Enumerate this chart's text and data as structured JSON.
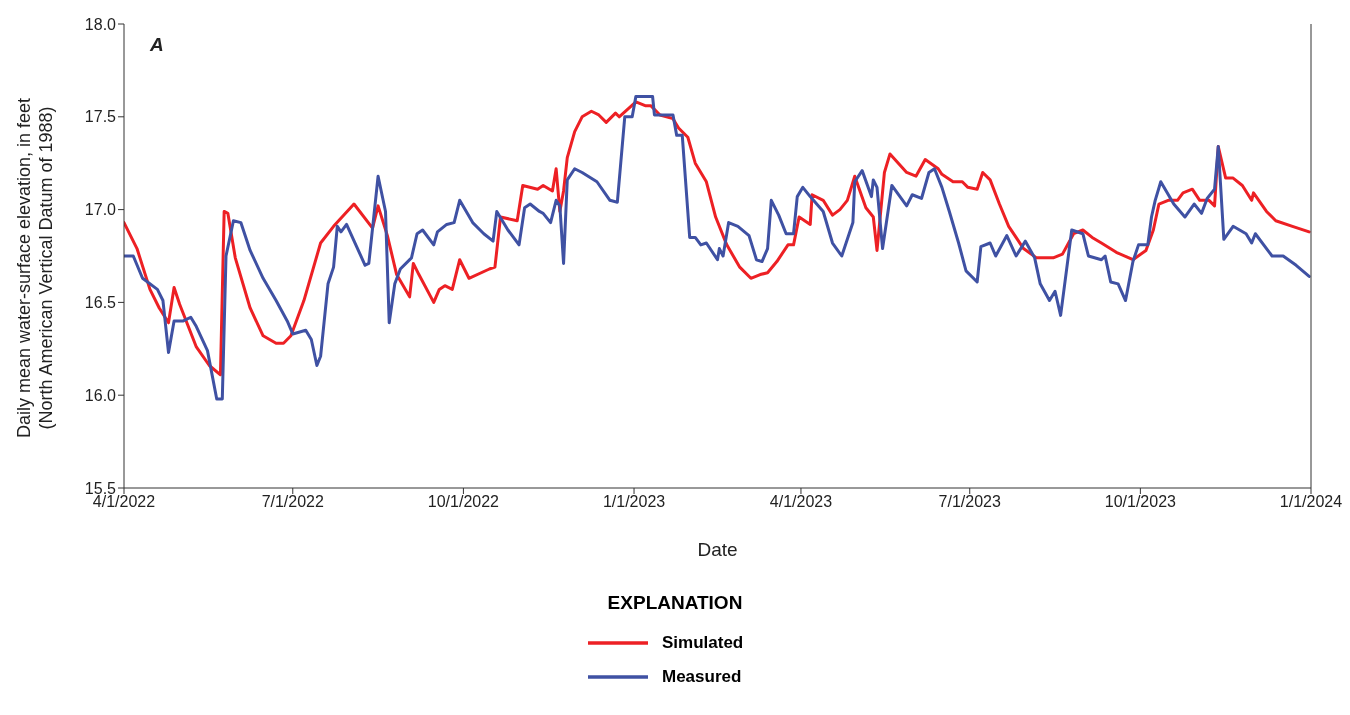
{
  "chart_data": {
    "type": "line",
    "xlabel": "Date",
    "ylabel": "Daily mean water-surface elevation, in feet\n(North American Vertical Datum of 1988)",
    "legend_title": "EXPLANATION",
    "legend": "bottom",
    "annotations": [
      "A"
    ],
    "marker": "none",
    "line_style": "solid",
    "xlim": [
      "2022-04-01",
      "2024-01-01"
    ],
    "xticks": [
      {
        "value": "2022-04-01",
        "label": "4/1/2022"
      },
      {
        "value": "2022-07-01",
        "label": "7/1/2022"
      },
      {
        "value": "2022-10-01",
        "label": "10/1/2022"
      },
      {
        "value": "2023-01-01",
        "label": "1/1/2023"
      },
      {
        "value": "2023-04-01",
        "label": "4/1/2023"
      },
      {
        "value": "2023-07-01",
        "label": "7/1/2023"
      },
      {
        "value": "2023-10-01",
        "label": "10/1/2023"
      },
      {
        "value": "2024-01-01",
        "label": "1/1/2024"
      }
    ],
    "ylim": [
      15.5,
      18.0
    ],
    "yticks": [
      {
        "value": 15.5,
        "label": "15.5"
      },
      {
        "value": 16,
        "label": "16.0"
      },
      {
        "value": 16.5,
        "label": "16.5"
      },
      {
        "value": 17,
        "label": "17.0"
      },
      {
        "value": 17.5,
        "label": "17.5"
      },
      {
        "value": 18,
        "label": "18.0"
      }
    ],
    "series": [
      {
        "name": "Simulated",
        "color": "#ed2024",
        "x": [
          "2022-04-01",
          "2022-04-08",
          "2022-04-15",
          "2022-04-20",
          "2022-04-25",
          "2022-04-28",
          "2022-05-01",
          "2022-05-10",
          "2022-05-17",
          "2022-05-23",
          "2022-05-25",
          "2022-05-27",
          "2022-05-31",
          "2022-06-08",
          "2022-06-15",
          "2022-06-22",
          "2022-06-26",
          "2022-06-30",
          "2022-07-07",
          "2022-07-16",
          "2022-07-23",
          "2022-08-03",
          "2022-08-13",
          "2022-08-16",
          "2022-08-21",
          "2022-08-26",
          "2022-09-02",
          "2022-09-04",
          "2022-09-07",
          "2022-09-15",
          "2022-09-18",
          "2022-09-21",
          "2022-09-25",
          "2022-09-29",
          "2022-10-04",
          "2022-10-15",
          "2022-10-18",
          "2022-10-21",
          "2022-10-30",
          "2022-11-02",
          "2022-11-10",
          "2022-11-13",
          "2022-11-18",
          "2022-11-20",
          "2022-11-22",
          "2022-11-24",
          "2022-11-26",
          "2022-11-30",
          "2022-12-04",
          "2022-12-09",
          "2022-12-13",
          "2022-12-17",
          "2022-12-22",
          "2022-12-24",
          "2023-01-02",
          "2023-01-07",
          "2023-01-10",
          "2023-01-15",
          "2023-01-22",
          "2023-01-25",
          "2023-01-30",
          "2023-02-03",
          "2023-02-09",
          "2023-02-14",
          "2023-02-20",
          "2023-02-27",
          "2023-03-05",
          "2023-03-10",
          "2023-03-14",
          "2023-03-19",
          "2023-03-25",
          "2023-03-28",
          "2023-03-31",
          "2023-04-06",
          "2023-04-07",
          "2023-04-13",
          "2023-04-18",
          "2023-04-22",
          "2023-04-26",
          "2023-04-30",
          "2023-05-06",
          "2023-05-10",
          "2023-05-12",
          "2023-05-16",
          "2023-05-19",
          "2023-05-28",
          "2023-06-02",
          "2023-06-07",
          "2023-06-14",
          "2023-06-16",
          "2023-06-22",
          "2023-06-27",
          "2023-06-30",
          "2023-07-05",
          "2023-07-08",
          "2023-07-12",
          "2023-07-17",
          "2023-07-22",
          "2023-07-30",
          "2023-08-06",
          "2023-08-15",
          "2023-08-20",
          "2023-08-26",
          "2023-08-31",
          "2023-09-05",
          "2023-09-10",
          "2023-09-18",
          "2023-09-27",
          "2023-10-04",
          "2023-10-08",
          "2023-10-11",
          "2023-10-16",
          "2023-10-21",
          "2023-10-24",
          "2023-10-29",
          "2023-11-02",
          "2023-11-07",
          "2023-11-10",
          "2023-11-12",
          "2023-11-16",
          "2023-11-20",
          "2023-11-25",
          "2023-11-30",
          "2023-12-01",
          "2023-12-08",
          "2023-12-13",
          "2023-12-22",
          "2023-12-31"
        ],
        "values": [
          16.93,
          16.79,
          16.57,
          16.47,
          16.39,
          16.58,
          16.49,
          16.26,
          16.16,
          16.11,
          16.99,
          16.98,
          16.74,
          16.47,
          16.32,
          16.28,
          16.28,
          16.32,
          16.51,
          16.82,
          16.91,
          17.03,
          16.9,
          17.02,
          16.86,
          16.65,
          16.53,
          16.71,
          16.65,
          16.5,
          16.57,
          16.59,
          16.57,
          16.73,
          16.63,
          16.68,
          16.69,
          16.96,
          16.94,
          17.13,
          17.11,
          17.13,
          17.1,
          17.22,
          16.99,
          17.1,
          17.28,
          17.42,
          17.5,
          17.53,
          17.51,
          17.47,
          17.52,
          17.5,
          17.58,
          17.56,
          17.56,
          17.51,
          17.49,
          17.44,
          17.39,
          17.25,
          17.15,
          16.96,
          16.81,
          16.69,
          16.63,
          16.65,
          16.66,
          16.72,
          16.81,
          16.81,
          16.96,
          16.92,
          17.08,
          17.05,
          16.97,
          17.0,
          17.05,
          17.18,
          17.01,
          16.96,
          16.78,
          17.2,
          17.3,
          17.2,
          17.18,
          17.27,
          17.22,
          17.19,
          17.15,
          17.15,
          17.12,
          17.11,
          17.2,
          17.16,
          17.03,
          16.91,
          16.79,
          16.74,
          16.74,
          16.76,
          16.87,
          16.89,
          16.85,
          16.82,
          16.77,
          16.73,
          16.78,
          16.89,
          17.03,
          17.05,
          17.05,
          17.09,
          17.11,
          17.05,
          17.05,
          17.02,
          17.34,
          17.17,
          17.17,
          17.13,
          17.05,
          17.09,
          16.99,
          16.94,
          16.91,
          16.88
        ]
      },
      {
        "name": "Measured",
        "color": "#3f51a3",
        "x": [
          "2022-04-01",
          "2022-04-06",
          "2022-04-11",
          "2022-04-19",
          "2022-04-22",
          "2022-04-25",
          "2022-04-28",
          "2022-05-03",
          "2022-05-07",
          "2022-05-10",
          "2022-05-16",
          "2022-05-21",
          "2022-05-24",
          "2022-05-26",
          "2022-05-30",
          "2022-06-03",
          "2022-06-08",
          "2022-06-15",
          "2022-06-22",
          "2022-06-28",
          "2022-07-01",
          "2022-07-08",
          "2022-07-11",
          "2022-07-14",
          "2022-07-16",
          "2022-07-20",
          "2022-07-23",
          "2022-07-25",
          "2022-07-27",
          "2022-07-30",
          "2022-08-04",
          "2022-08-09",
          "2022-08-11",
          "2022-08-16",
          "2022-08-20",
          "2022-08-22",
          "2022-08-25",
          "2022-08-28",
          "2022-09-03",
          "2022-09-06",
          "2022-09-09",
          "2022-09-15",
          "2022-09-17",
          "2022-09-22",
          "2022-09-26",
          "2022-09-29",
          "2022-10-06",
          "2022-10-12",
          "2022-10-17",
          "2022-10-19",
          "2022-10-25",
          "2022-10-31",
          "2022-11-03",
          "2022-11-06",
          "2022-11-11",
          "2022-11-13",
          "2022-11-17",
          "2022-11-20",
          "2022-11-22",
          "2022-11-24",
          "2022-11-26",
          "2022-11-30",
          "2022-12-04",
          "2022-12-12",
          "2022-12-19",
          "2022-12-23",
          "2022-12-27",
          "2022-12-31",
          "2023-01-02",
          "2023-01-11",
          "2023-01-12",
          "2023-01-22",
          "2023-01-24",
          "2023-01-27",
          "2023-01-31",
          "2023-02-03",
          "2023-02-06",
          "2023-02-09",
          "2023-02-15",
          "2023-02-16",
          "2023-02-18",
          "2023-02-21",
          "2023-02-26",
          "2023-03-04",
          "2023-03-08",
          "2023-03-11",
          "2023-03-14",
          "2023-03-16",
          "2023-03-20",
          "2023-03-24",
          "2023-03-28",
          "2023-03-30",
          "2023-04-02",
          "2023-04-06",
          "2023-04-13",
          "2023-04-18",
          "2023-04-23",
          "2023-04-29",
          "2023-04-30",
          "2023-05-04",
          "2023-05-09",
          "2023-05-10",
          "2023-05-12",
          "2023-05-15",
          "2023-05-20",
          "2023-05-28",
          "2023-05-31",
          "2023-06-05",
          "2023-06-09",
          "2023-06-12",
          "2023-06-16",
          "2023-06-20",
          "2023-06-25",
          "2023-06-29",
          "2023-07-05",
          "2023-07-07",
          "2023-07-12",
          "2023-07-15",
          "2023-07-21",
          "2023-07-26",
          "2023-07-31",
          "2023-08-05",
          "2023-08-08",
          "2023-08-13",
          "2023-08-16",
          "2023-08-19",
          "2023-08-25",
          "2023-08-31",
          "2023-09-03",
          "2023-09-10",
          "2023-09-12",
          "2023-09-15",
          "2023-09-19",
          "2023-09-23",
          "2023-09-27",
          "2023-09-30",
          "2023-10-05",
          "2023-10-07",
          "2023-10-09",
          "2023-10-12",
          "2023-10-19",
          "2023-10-25",
          "2023-10-30",
          "2023-11-03",
          "2023-11-06",
          "2023-11-10",
          "2023-11-12",
          "2023-11-15",
          "2023-11-20",
          "2023-11-27",
          "2023-11-30",
          "2023-12-02",
          "2023-12-11",
          "2023-12-17",
          "2023-12-24",
          "2023-12-31"
        ],
        "values": [
          16.75,
          16.75,
          16.63,
          16.57,
          16.51,
          16.23,
          16.4,
          16.4,
          16.42,
          16.37,
          16.24,
          15.98,
          15.98,
          16.75,
          16.94,
          16.93,
          16.78,
          16.63,
          16.51,
          16.4,
          16.33,
          16.35,
          16.3,
          16.16,
          16.21,
          16.6,
          16.69,
          16.91,
          16.88,
          16.92,
          16.81,
          16.7,
          16.71,
          17.18,
          16.99,
          16.39,
          16.6,
          16.68,
          16.74,
          16.87,
          16.89,
          16.81,
          16.88,
          16.92,
          16.93,
          17.05,
          16.93,
          16.87,
          16.83,
          16.99,
          16.89,
          16.81,
          17.01,
          17.03,
          16.99,
          16.98,
          16.93,
          17.05,
          17.02,
          16.71,
          17.16,
          17.22,
          17.2,
          17.15,
          17.05,
          17.04,
          17.5,
          17.5,
          17.61,
          17.61,
          17.51,
          17.51,
          17.4,
          17.4,
          16.85,
          16.85,
          16.81,
          16.82,
          16.73,
          16.79,
          16.75,
          16.93,
          16.91,
          16.86,
          16.73,
          16.72,
          16.79,
          17.05,
          16.97,
          16.87,
          16.87,
          17.07,
          17.12,
          17.07,
          16.99,
          16.82,
          16.75,
          16.93,
          17.15,
          17.21,
          17.07,
          17.16,
          17.12,
          16.79,
          17.13,
          17.02,
          17.08,
          17.06,
          17.2,
          17.22,
          17.12,
          16.99,
          16.82,
          16.67,
          16.61,
          16.8,
          16.82,
          16.75,
          16.86,
          16.75,
          16.83,
          16.74,
          16.6,
          16.51,
          16.56,
          16.43,
          16.89,
          16.87,
          16.75,
          16.73,
          16.75,
          16.61,
          16.6,
          16.51,
          16.72,
          16.81,
          16.81,
          16.96,
          17.05,
          17.15,
          17.03,
          16.96,
          17.03,
          16.98,
          17.06,
          17.11,
          17.34,
          16.84,
          16.91,
          16.87,
          16.82,
          16.87,
          16.75,
          16.75,
          16.7,
          16.64
        ]
      }
    ]
  }
}
